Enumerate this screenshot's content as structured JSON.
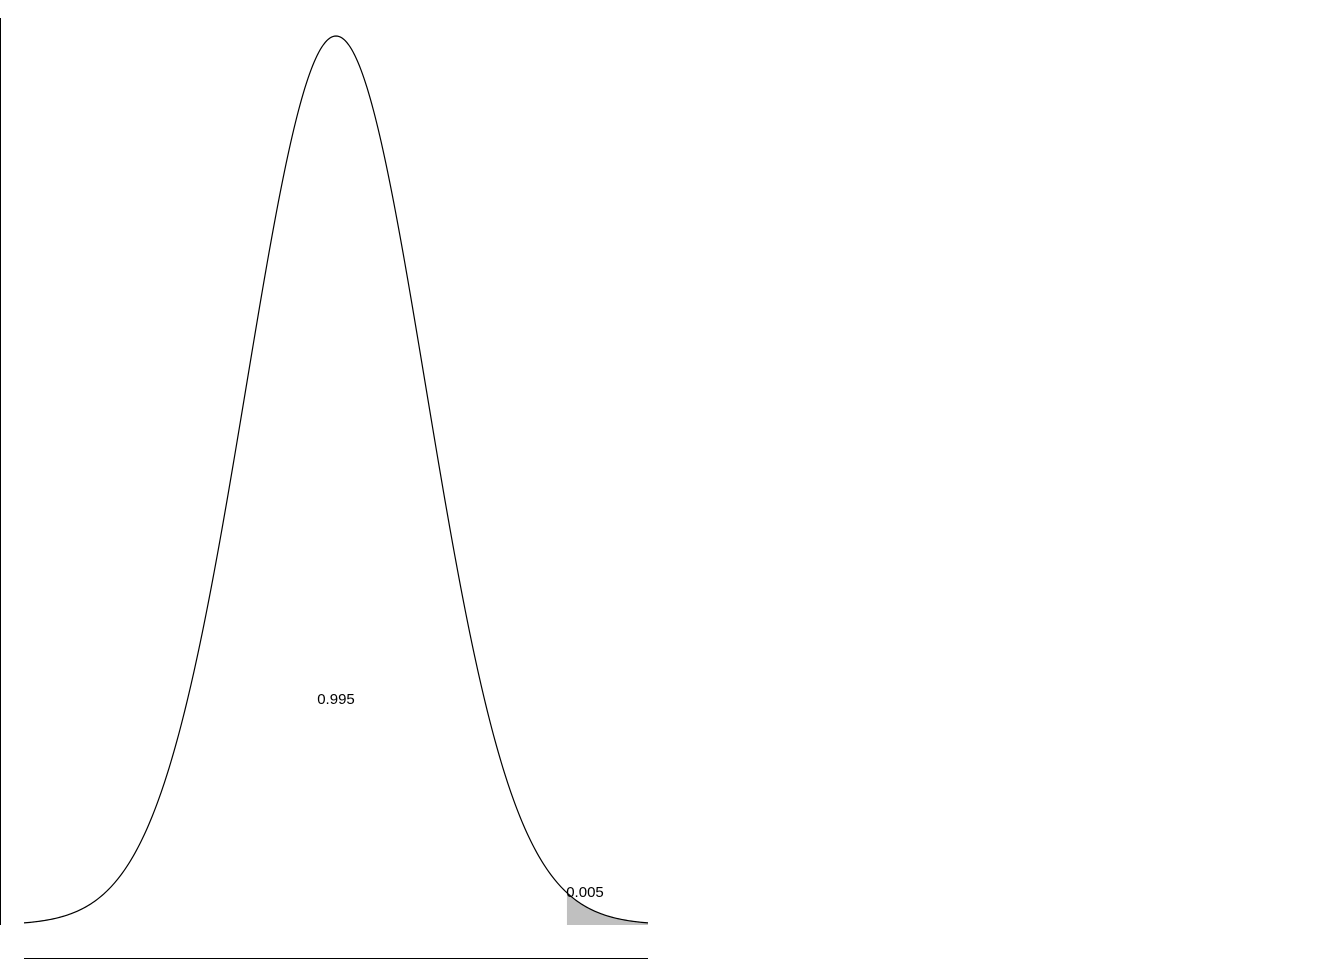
{
  "chart_data": {
    "type": "area",
    "distribution": "normal",
    "mean": 0,
    "sd": 1,
    "xlim": [
      -3.48,
      3.48
    ],
    "critical_value": 2.576,
    "shaded_region": "upper-tail",
    "annotations": [
      {
        "text": "0.995",
        "region": "center"
      },
      {
        "text": "0.005",
        "region": "upper-tail"
      }
    ],
    "title": "",
    "xlabel": "",
    "ylabel": "",
    "grid": false,
    "colors": {
      "curve": "#000000",
      "shade": "#c0c0c0",
      "background": "#ffffff"
    }
  }
}
